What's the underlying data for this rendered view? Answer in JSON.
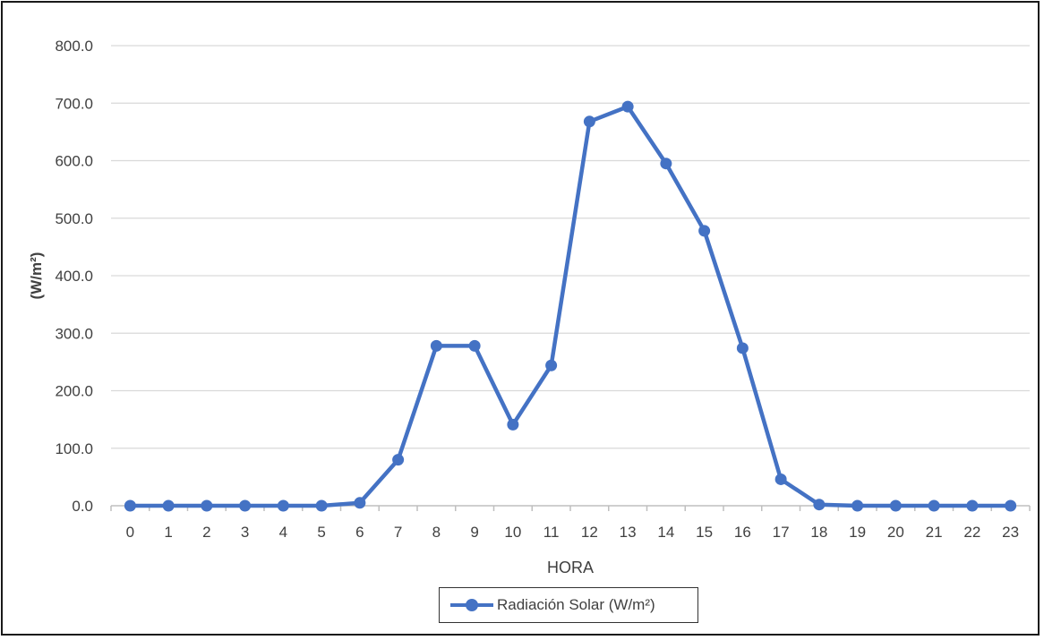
{
  "chart_data": {
    "type": "line",
    "title": "",
    "xlabel": "HORA",
    "ylabel": "(W/m²)",
    "ylim": [
      0,
      800
    ],
    "ytick_step": 100,
    "grid": true,
    "legend_position": "bottom",
    "categories": [
      "0",
      "1",
      "2",
      "3",
      "4",
      "5",
      "6",
      "7",
      "8",
      "9",
      "10",
      "11",
      "12",
      "13",
      "14",
      "15",
      "16",
      "17",
      "18",
      "19",
      "20",
      "21",
      "22",
      "23"
    ],
    "series": [
      {
        "name": "Radiación Solar (W/m²)",
        "color": "#4472c4",
        "values": [
          0,
          0,
          0,
          0,
          0,
          0,
          5,
          80,
          278,
          278,
          141,
          244,
          668,
          694,
          595,
          478,
          274,
          46,
          2,
          0,
          0,
          0,
          0,
          0
        ]
      }
    ]
  }
}
